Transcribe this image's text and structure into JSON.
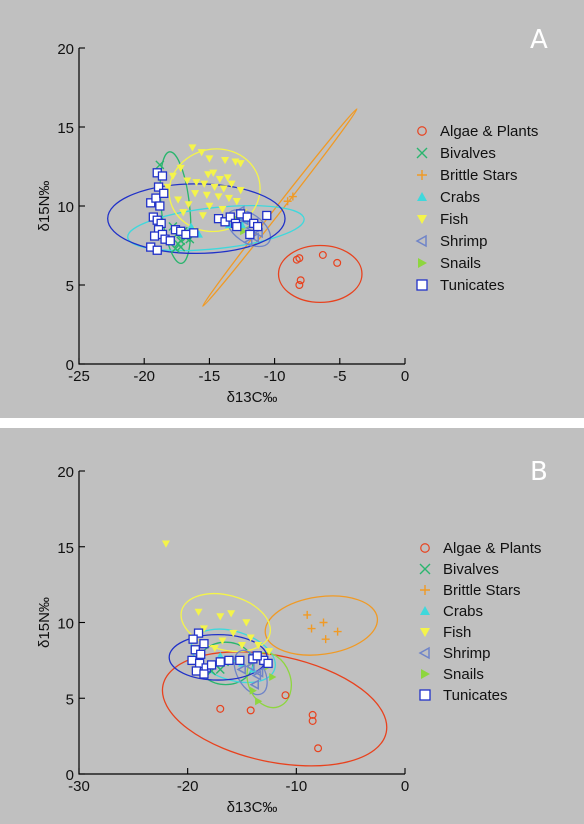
{
  "chart_data": [
    {
      "panel": "A",
      "type": "scatter",
      "xlabel": "δ13C‰",
      "ylabel": "δ15N‰",
      "xlim": [
        -25,
        0
      ],
      "ylim": [
        0,
        20
      ],
      "xticks": [
        -25,
        -20,
        -15,
        -10,
        -5,
        0
      ],
      "yticks": [
        0,
        5,
        10,
        15,
        20
      ],
      "legend": "right",
      "series": [
        {
          "name": "Algae & Plants",
          "marker": "circle",
          "color": "#e8421e",
          "points": [
            [
              -8.3,
              6.6
            ],
            [
              -8.0,
              5.3
            ],
            [
              -8.1,
              5.0
            ],
            [
              -6.3,
              6.9
            ],
            [
              -5.2,
              6.4
            ],
            [
              -8.1,
              6.7
            ]
          ],
          "ellipse": {
            "cx": -6.5,
            "cy": 5.7,
            "rx": 3.2,
            "ry": 1.8,
            "angle": 0
          }
        },
        {
          "name": "Bivalves",
          "marker": "x",
          "color": "#2ab56e",
          "points": [
            [
              -18.8,
              12.6
            ],
            [
              -17.4,
              7.6
            ],
            [
              -17.6,
              7.3
            ],
            [
              -17.2,
              7.8
            ],
            [
              -17.5,
              8.2
            ],
            [
              -17.2,
              7.4
            ],
            [
              -16.8,
              8.0
            ],
            [
              -17.8,
              8.7
            ],
            [
              -17.0,
              8.4
            ],
            [
              -16.5,
              7.9
            ]
          ],
          "ellipse": {
            "cx": -17.6,
            "cy": 9.9,
            "rx": 4.3,
            "ry": 0.9,
            "angle": 96
          }
        },
        {
          "name": "Brittle Stars",
          "marker": "plus",
          "color": "#f09a25",
          "points": [
            [
              -9.0,
              10.3
            ],
            [
              -8.6,
              10.6
            ]
          ],
          "ellipse": {
            "cx": -9.6,
            "cy": 9.9,
            "rx": 9.6,
            "ry": 0.2,
            "angle": 52
          }
        },
        {
          "name": "Crabs",
          "marker": "triangle-up",
          "color": "#3fd8dc",
          "points": [
            [
              -16.4,
              8.7
            ],
            [
              -12.8,
              9.3
            ],
            [
              -12.5,
              8.8
            ],
            [
              -12.3,
              9.1
            ],
            [
              -13.5,
              8.8
            ],
            [
              -15.8,
              8.2
            ]
          ],
          "ellipse": {
            "cx": -14.5,
            "cy": 8.6,
            "rx": 6.8,
            "ry": 1.3,
            "angle": 6
          }
        },
        {
          "name": "Fish",
          "marker": "triangle-down",
          "color": "#f4f44a",
          "points": [
            [
              -16.3,
              13.7
            ],
            [
              -15.6,
              13.4
            ],
            [
              -15.0,
              13.0
            ],
            [
              -13.8,
              12.9
            ],
            [
              -13.0,
              12.8
            ],
            [
              -12.6,
              12.7
            ],
            [
              -17.2,
              12.4
            ],
            [
              -15.1,
              12.0
            ],
            [
              -14.7,
              12.1
            ],
            [
              -14.2,
              11.7
            ],
            [
              -13.6,
              11.8
            ],
            [
              -16.7,
              11.6
            ],
            [
              -16.0,
              11.5
            ],
            [
              -15.4,
              11.4
            ],
            [
              -14.6,
              11.2
            ],
            [
              -13.9,
              11.1
            ],
            [
              -13.3,
              11.4
            ],
            [
              -12.6,
              11.0
            ],
            [
              -16.1,
              10.8
            ],
            [
              -15.2,
              10.7
            ],
            [
              -14.3,
              10.6
            ],
            [
              -13.5,
              10.5
            ],
            [
              -12.9,
              10.3
            ],
            [
              -17.4,
              10.4
            ],
            [
              -16.6,
              10.1
            ],
            [
              -15.0,
              10.0
            ],
            [
              -14.0,
              9.8
            ],
            [
              -12.4,
              9.6
            ],
            [
              -17.0,
              9.6
            ],
            [
              -15.5,
              9.4
            ],
            [
              -14.4,
              9.2
            ],
            [
              -13.1,
              9.0
            ],
            [
              -17.8,
              11.9
            ],
            [
              -18.2,
              11.2
            ]
          ],
          "ellipse": {
            "cx": -14.6,
            "cy": 11.0,
            "rx": 3.5,
            "ry": 2.6,
            "angle": 12
          }
        },
        {
          "name": "Shrimp",
          "marker": "triangle-left",
          "color": "#6f84c8",
          "points": [
            [
              -12.6,
              9.7
            ],
            [
              -12.3,
              9.1
            ],
            [
              -11.8,
              8.6
            ],
            [
              -11.5,
              8.0
            ],
            [
              -12.0,
              7.7
            ],
            [
              -11.2,
              8.3
            ]
          ],
          "ellipse": {
            "cx": -12.0,
            "cy": 8.6,
            "rx": 1.9,
            "ry": 0.9,
            "angle": -35
          }
        },
        {
          "name": "Snails",
          "marker": "triangle-right",
          "color": "#8ed63f",
          "points": [
            [
              -13.0,
              9.2
            ],
            [
              -12.4,
              8.4
            ]
          ],
          "ellipse": {
            "cx": -12.5,
            "cy": 9.0,
            "rx": 0.8,
            "ry": 0.4,
            "angle": 0
          }
        },
        {
          "name": "Tunicates",
          "marker": "square",
          "color": "#2031c8",
          "points": [
            [
              -19.0,
              12.1
            ],
            [
              -18.6,
              11.9
            ],
            [
              -18.9,
              11.2
            ],
            [
              -19.5,
              10.2
            ],
            [
              -19.1,
              10.5
            ],
            [
              -18.8,
              10.0
            ],
            [
              -19.3,
              9.3
            ],
            [
              -19.0,
              9.1
            ],
            [
              -18.7,
              8.9
            ],
            [
              -18.9,
              8.5
            ],
            [
              -19.2,
              8.1
            ],
            [
              -18.6,
              8.2
            ],
            [
              -18.4,
              7.9
            ],
            [
              -18.0,
              7.8
            ],
            [
              -17.6,
              8.5
            ],
            [
              -17.2,
              8.4
            ],
            [
              -16.8,
              8.2
            ],
            [
              -16.2,
              8.3
            ],
            [
              -19.5,
              7.4
            ],
            [
              -19.0,
              7.2
            ],
            [
              -14.3,
              9.2
            ],
            [
              -13.8,
              9.0
            ],
            [
              -13.4,
              9.3
            ],
            [
              -13.0,
              8.9
            ],
            [
              -12.6,
              9.5
            ],
            [
              -12.1,
              9.3
            ],
            [
              -11.6,
              8.9
            ],
            [
              -11.3,
              8.7
            ],
            [
              -10.6,
              9.4
            ],
            [
              -12.9,
              8.7
            ],
            [
              -11.9,
              8.2
            ],
            [
              -18.5,
              10.8
            ]
          ],
          "ellipse": {
            "cx": -16.0,
            "cy": 9.2,
            "rx": 6.8,
            "ry": 2.2,
            "angle": 0
          }
        }
      ]
    },
    {
      "panel": "B",
      "type": "scatter",
      "xlabel": "δ13C‰",
      "ylabel": "δ15N‰",
      "xlim": [
        -30,
        0
      ],
      "ylim": [
        0,
        20
      ],
      "xticks": [
        -30,
        -20,
        -10,
        0
      ],
      "yticks": [
        0,
        5,
        10,
        15,
        20
      ],
      "legend": "right",
      "series": [
        {
          "name": "Algae & Plants",
          "marker": "circle",
          "color": "#e8421e",
          "points": [
            [
              -17.0,
              4.3
            ],
            [
              -14.2,
              4.2
            ],
            [
              -11.0,
              5.2
            ],
            [
              -8.5,
              3.9
            ],
            [
              -8.5,
              3.5
            ],
            [
              -8.0,
              1.7
            ]
          ],
          "ellipse": {
            "cx": -12.0,
            "cy": 4.3,
            "rx": 10.5,
            "ry": 3.5,
            "angle": -12
          }
        },
        {
          "name": "Bivalves",
          "marker": "x",
          "color": "#2ab56e",
          "points": [
            [
              -17.8,
              6.8
            ],
            [
              -17.4,
              7.2
            ],
            [
              -17.0,
              6.9
            ],
            [
              -16.6,
              7.4
            ]
          ],
          "ellipse": {
            "cx": -16.5,
            "cy": 7.3,
            "rx": 2.5,
            "ry": 1.4,
            "angle": 0
          }
        },
        {
          "name": "Brittle Stars",
          "marker": "plus",
          "color": "#f09a25",
          "points": [
            [
              -9.0,
              10.5
            ],
            [
              -7.5,
              10.0
            ],
            [
              -6.2,
              9.4
            ],
            [
              -7.3,
              8.9
            ],
            [
              -8.6,
              9.6
            ]
          ],
          "ellipse": {
            "cx": -7.7,
            "cy": 9.8,
            "rx": 5.2,
            "ry": 1.9,
            "angle": 8
          }
        },
        {
          "name": "Crabs",
          "marker": "triangle-up",
          "color": "#3fd8dc",
          "points": [
            [
              -17.0,
              7.8
            ],
            [
              -16.0,
              7.6
            ],
            [
              -15.0,
              7.3
            ],
            [
              -14.0,
              6.9
            ],
            [
              -13.0,
              7.5
            ]
          ],
          "ellipse": {
            "cx": -15.8,
            "cy": 7.8,
            "rx": 4.0,
            "ry": 1.6,
            "angle": -18
          }
        },
        {
          "name": "Fish",
          "marker": "triangle-down",
          "color": "#f4f44a",
          "points": [
            [
              -22.0,
              15.2
            ],
            [
              -19.0,
              10.7
            ],
            [
              -17.0,
              10.4
            ],
            [
              -16.0,
              10.6
            ],
            [
              -14.6,
              10.0
            ],
            [
              -18.5,
              9.6
            ],
            [
              -15.8,
              9.3
            ],
            [
              -14.2,
              9.0
            ],
            [
              -13.5,
              8.5
            ],
            [
              -16.8,
              8.8
            ],
            [
              -17.5,
              8.3
            ],
            [
              -15.0,
              8.5
            ],
            [
              -12.5,
              8.1
            ]
          ],
          "ellipse": {
            "cx": -16.5,
            "cy": 10.0,
            "rx": 4.2,
            "ry": 1.8,
            "angle": -15
          }
        },
        {
          "name": "Shrimp",
          "marker": "triangle-left",
          "color": "#6f84c8",
          "points": [
            [
              -15.0,
              6.9
            ],
            [
              -14.2,
              7.1
            ],
            [
              -13.6,
              6.5
            ],
            [
              -13.8,
              5.9
            ],
            [
              -13.4,
              6.7
            ]
          ],
          "ellipse": {
            "cx": -14.2,
            "cy": 6.7,
            "rx": 2.2,
            "ry": 0.9,
            "angle": -62
          }
        },
        {
          "name": "Snails",
          "marker": "triangle-right",
          "color": "#8ed63f",
          "points": [
            [
              -14.0,
              5.5
            ],
            [
              -13.5,
              4.8
            ],
            [
              -12.6,
              7.1
            ],
            [
              -12.2,
              6.4
            ]
          ],
          "ellipse": {
            "cx": -12.5,
            "cy": 6.2,
            "rx": 2.6,
            "ry": 1.4,
            "angle": -70
          }
        },
        {
          "name": "Tunicates",
          "marker": "square",
          "color": "#2031c8",
          "points": [
            [
              -19.0,
              9.3
            ],
            [
              -19.5,
              8.9
            ],
            [
              -18.5,
              8.6
            ],
            [
              -19.3,
              8.2
            ],
            [
              -18.8,
              7.9
            ],
            [
              -19.6,
              7.5
            ],
            [
              -18.9,
              7.3
            ],
            [
              -18.3,
              7.0
            ],
            [
              -19.2,
              6.8
            ],
            [
              -18.5,
              6.6
            ],
            [
              -17.8,
              7.2
            ],
            [
              -17.0,
              7.4
            ],
            [
              -16.2,
              7.5
            ],
            [
              -15.2,
              7.5
            ],
            [
              -14.0,
              7.6
            ],
            [
              -13.0,
              7.5
            ],
            [
              -13.6,
              7.8
            ],
            [
              -12.6,
              7.3
            ]
          ],
          "ellipse": {
            "cx": -17.2,
            "cy": 7.7,
            "rx": 4.5,
            "ry": 1.5,
            "angle": 0
          }
        }
      ]
    }
  ],
  "panels": [
    {
      "letter": "A"
    },
    {
      "letter": "B"
    }
  ]
}
